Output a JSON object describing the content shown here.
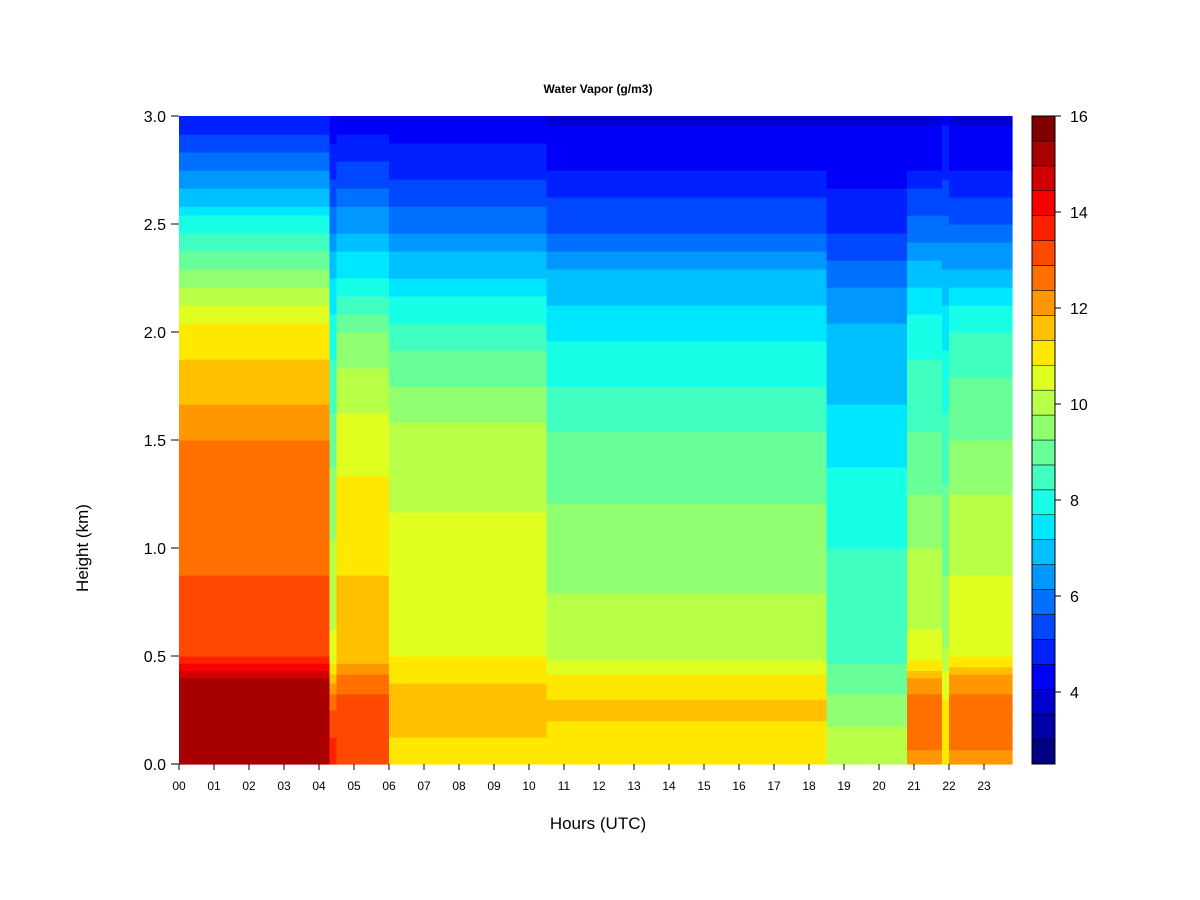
{
  "chart_data": {
    "type": "heatmap",
    "title": "Water Vapor (g/m3)",
    "xlabel": "Hours (UTC)",
    "ylabel": "Height (km)",
    "xlim": [
      0,
      24
    ],
    "ylim": [
      0.0,
      3.0
    ],
    "x_tick_labels": [
      "00",
      "01",
      "02",
      "03",
      "04",
      "05",
      "06",
      "07",
      "08",
      "09",
      "10",
      "11",
      "12",
      "13",
      "14",
      "15",
      "16",
      "17",
      "18",
      "19",
      "20",
      "21",
      "22",
      "23"
    ],
    "y_tick_labels": [
      "0.0",
      "0.5",
      "1.0",
      "1.5",
      "2.0",
      "2.5",
      "3.0"
    ],
    "y_ticks": [
      0.0,
      0.5,
      1.0,
      1.5,
      2.0,
      2.5,
      3.0
    ],
    "colorbar": {
      "range": [
        2.5,
        16
      ],
      "tick_values": [
        4,
        6,
        8,
        10,
        12,
        14,
        16
      ],
      "tick_labels": [
        "4",
        "6",
        "8",
        "10",
        "12",
        "14",
        "16"
      ],
      "colors": [
        "#000080",
        "#0000a8",
        "#0000d0",
        "#0000f8",
        "#0020ff",
        "#0048ff",
        "#0070ff",
        "#0098ff",
        "#00c0ff",
        "#00e8ff",
        "#18ffe8",
        "#40ffc0",
        "#68ff98",
        "#90ff70",
        "#b8ff48",
        "#e0ff20",
        "#ffe800",
        "#ffc000",
        "#ff9800",
        "#ff7000",
        "#ff4800",
        "#ff2000",
        "#f80000",
        "#d00000",
        "#a80000",
        "#800000"
      ]
    },
    "heights_km": [
      0.0,
      0.1,
      0.25,
      0.4,
      0.5,
      0.75,
      1.0,
      1.25,
      1.5,
      1.75,
      2.0,
      2.25,
      2.5,
      2.75,
      3.0
    ],
    "time_bins": [
      {
        "start": 0.0,
        "end": 4.3,
        "values": [
          15.0,
          15.2,
          15.3,
          15.0,
          13.4,
          13.0,
          12.8,
          12.6,
          12.4,
          11.6,
          11.0,
          9.5,
          8.0,
          6.0,
          4.5
        ]
      },
      {
        "start": 4.3,
        "end": 4.5,
        "values": [
          13.5,
          13.5,
          13.0,
          11.5,
          10.5,
          10.0,
          9.8,
          9.5,
          9.0,
          8.5,
          8.0,
          7.2,
          6.0,
          5.0,
          4.0
        ]
      },
      {
        "start": 4.5,
        "end": 6.0,
        "values": [
          13.0,
          13.0,
          13.2,
          12.5,
          11.5,
          11.5,
          11.2,
          11.0,
          10.5,
          10.0,
          9.2,
          7.8,
          6.5,
          5.2,
          4.2
        ]
      },
      {
        "start": 6.0,
        "end": 10.5,
        "values": [
          11.0,
          11.2,
          11.8,
          11.2,
          10.8,
          10.8,
          10.5,
          10.2,
          10.0,
          9.3,
          8.5,
          7.2,
          6.0,
          5.0,
          4.2
        ]
      },
      {
        "start": 10.5,
        "end": 18.5,
        "values": [
          11.0,
          11.0,
          11.5,
          11.0,
          10.2,
          9.8,
          9.6,
          9.2,
          8.8,
          8.2,
          7.6,
          6.8,
          5.5,
          4.6,
          4.0
        ]
      },
      {
        "start": 18.5,
        "end": 20.8,
        "values": [
          10.0,
          10.0,
          9.5,
          9.0,
          8.6,
          8.6,
          8.2,
          7.8,
          7.6,
          7.0,
          6.8,
          6.0,
          5.0,
          4.4,
          4.0
        ]
      },
      {
        "start": 20.8,
        "end": 21.8,
        "values": [
          12.0,
          12.5,
          12.8,
          11.8,
          10.5,
          10.0,
          9.8,
          9.2,
          8.8,
          8.5,
          8.0,
          7.0,
          5.8,
          4.6,
          4.0
        ]
      },
      {
        "start": 21.8,
        "end": 22.0,
        "values": [
          11.0,
          11.0,
          11.0,
          10.5,
          9.8,
          9.5,
          9.0,
          8.8,
          8.5,
          8.0,
          7.5,
          6.8,
          5.8,
          5.0,
          4.5
        ]
      },
      {
        "start": 22.0,
        "end": 23.8,
        "values": [
          12.0,
          12.5,
          12.8,
          12.0,
          10.8,
          10.5,
          10.0,
          9.8,
          9.2,
          8.8,
          8.2,
          7.0,
          5.6,
          4.6,
          4.0
        ]
      }
    ]
  }
}
